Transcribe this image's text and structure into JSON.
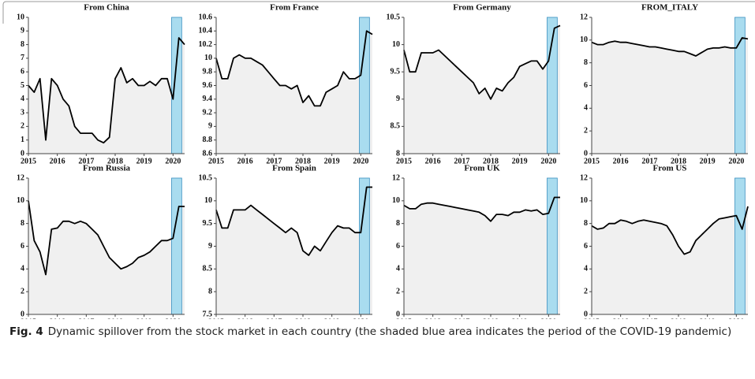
{
  "chart_data": [
    {
      "type": "line",
      "title": "From China",
      "x": [
        2015,
        2015.2,
        2015.4,
        2015.6,
        2015.8,
        2016,
        2016.2,
        2016.4,
        2016.6,
        2016.8,
        2017,
        2017.2,
        2017.4,
        2017.6,
        2017.8,
        2018,
        2018.2,
        2018.4,
        2018.6,
        2018.8,
        2019,
        2019.2,
        2019.4,
        2019.6,
        2019.8,
        2020,
        2020.2,
        2020.4
      ],
      "series": [
        {
          "color": "#000000",
          "values": [
            5,
            4.5,
            5.5,
            1,
            5.5,
            5,
            4,
            3.5,
            2,
            1.5,
            1.5,
            1.5,
            1.0,
            0.8,
            1.2,
            5.5,
            6.3,
            5.2,
            5.5,
            5,
            5,
            5.3,
            5,
            5.5,
            5.5,
            4,
            8.5,
            8
          ]
        }
      ],
      "xlim": [
        2015,
        2020.4
      ],
      "xticks": [
        2015,
        2016,
        2017,
        2018,
        2019,
        2020
      ],
      "ylim": [
        0,
        10
      ],
      "yticks": [
        0,
        1,
        2,
        3,
        4,
        5,
        6,
        7,
        8,
        9,
        10
      ],
      "fill": "#f0f0f0",
      "shade": {
        "x": [
          2019.95,
          2020.3
        ],
        "color": "#a9dcef"
      }
    },
    {
      "type": "line",
      "title": "From France",
      "x": [
        2015,
        2015.2,
        2015.4,
        2015.6,
        2015.8,
        2016,
        2016.2,
        2016.4,
        2016.6,
        2016.8,
        2017,
        2017.2,
        2017.4,
        2017.6,
        2017.8,
        2018,
        2018.2,
        2018.4,
        2018.6,
        2018.8,
        2019,
        2019.2,
        2019.4,
        2019.6,
        2019.8,
        2020,
        2020.2,
        2020.4
      ],
      "series": [
        {
          "color": "#000000",
          "values": [
            10,
            9.7,
            9.7,
            10,
            10.05,
            10,
            10,
            9.95,
            9.9,
            9.8,
            9.7,
            9.6,
            9.6,
            9.55,
            9.6,
            9.35,
            9.45,
            9.3,
            9.3,
            9.5,
            9.55,
            9.6,
            9.8,
            9.7,
            9.7,
            9.75,
            10.4,
            10.35
          ]
        }
      ],
      "xlim": [
        2015,
        2020.4
      ],
      "xticks": [
        2015,
        2016,
        2017,
        2018,
        2019,
        2020
      ],
      "ylim": [
        8.6,
        10.6
      ],
      "yticks": [
        8.6,
        8.8,
        9,
        9.2,
        9.4,
        9.6,
        9.8,
        10,
        10.2,
        10.4,
        10.6
      ],
      "fill": "#f0f0f0",
      "shade": {
        "x": [
          2019.95,
          2020.3
        ],
        "color": "#a9dcef"
      }
    },
    {
      "type": "line",
      "title": "From Germany",
      "x": [
        2015,
        2015.2,
        2015.4,
        2015.6,
        2015.8,
        2016,
        2016.2,
        2016.4,
        2016.6,
        2016.8,
        2017,
        2017.2,
        2017.4,
        2017.6,
        2017.8,
        2018,
        2018.2,
        2018.4,
        2018.6,
        2018.8,
        2019,
        2019.2,
        2019.4,
        2019.6,
        2019.8,
        2020,
        2020.2,
        2020.4
      ],
      "series": [
        {
          "color": "#000000",
          "values": [
            9.9,
            9.5,
            9.5,
            9.85,
            9.85,
            9.85,
            9.9,
            9.8,
            9.7,
            9.6,
            9.5,
            9.4,
            9.3,
            9.1,
            9.2,
            9.0,
            9.2,
            9.15,
            9.3,
            9.4,
            9.6,
            9.65,
            9.7,
            9.7,
            9.55,
            9.7,
            10.3,
            10.35
          ]
        }
      ],
      "xlim": [
        2015,
        2020.4
      ],
      "xticks": [
        2015,
        2016,
        2017,
        2018,
        2019,
        2020
      ],
      "ylim": [
        8,
        10.5
      ],
      "yticks": [
        8,
        8.5,
        9,
        9.5,
        10,
        10.5
      ],
      "fill": "#f0f0f0",
      "shade": {
        "x": [
          2019.95,
          2020.3
        ],
        "color": "#a9dcef"
      }
    },
    {
      "type": "line",
      "title": "FROM_ITALY",
      "x": [
        2015,
        2015.2,
        2015.4,
        2015.6,
        2015.8,
        2016,
        2016.2,
        2016.4,
        2016.6,
        2016.8,
        2017,
        2017.2,
        2017.4,
        2017.6,
        2017.8,
        2018,
        2018.2,
        2018.4,
        2018.6,
        2018.8,
        2019,
        2019.2,
        2019.4,
        2019.6,
        2019.8,
        2020,
        2020.2,
        2020.4
      ],
      "series": [
        {
          "color": "#000000",
          "values": [
            9.8,
            9.6,
            9.6,
            9.8,
            9.9,
            9.8,
            9.8,
            9.7,
            9.6,
            9.5,
            9.4,
            9.4,
            9.3,
            9.2,
            9.1,
            9.0,
            9.0,
            8.8,
            8.6,
            8.9,
            9.2,
            9.3,
            9.3,
            9.4,
            9.3,
            9.3,
            10.2,
            10.1
          ]
        }
      ],
      "xlim": [
        2015,
        2020.4
      ],
      "xticks": [
        2015,
        2016,
        2017,
        2018,
        2019,
        2020
      ],
      "ylim": [
        0,
        12
      ],
      "yticks": [
        0,
        2,
        4,
        6,
        8,
        10,
        12
      ],
      "fill": "#f0f0f0",
      "shade": {
        "x": [
          2019.95,
          2020.3
        ],
        "color": "#a9dcef"
      }
    },
    {
      "type": "line",
      "title": "From Russia",
      "x": [
        2015,
        2015.2,
        2015.4,
        2015.6,
        2015.8,
        2016,
        2016.2,
        2016.4,
        2016.6,
        2016.8,
        2017,
        2017.2,
        2017.4,
        2017.6,
        2017.8,
        2018,
        2018.2,
        2018.4,
        2018.6,
        2018.8,
        2019,
        2019.2,
        2019.4,
        2019.6,
        2019.8,
        2020,
        2020.2,
        2020.4
      ],
      "series": [
        {
          "color": "#000000",
          "values": [
            10,
            6.5,
            5.5,
            3.5,
            7.5,
            7.6,
            8.2,
            8.2,
            8.0,
            8.2,
            8.0,
            7.5,
            7.0,
            6.0,
            5.0,
            4.5,
            4.0,
            4.2,
            4.5,
            5.0,
            5.2,
            5.5,
            6.0,
            6.5,
            6.5,
            6.7,
            9.5,
            9.5
          ]
        }
      ],
      "xlim": [
        2015,
        2020.4
      ],
      "xticks": [
        2015,
        2016,
        2017,
        2018,
        2019,
        2020
      ],
      "ylim": [
        0,
        12
      ],
      "yticks": [
        0,
        2,
        4,
        6,
        8,
        10,
        12
      ],
      "fill": "#f0f0f0",
      "shade": {
        "x": [
          2019.95,
          2020.3
        ],
        "color": "#a9dcef"
      }
    },
    {
      "type": "line",
      "title": "From Spain",
      "x": [
        2015,
        2015.2,
        2015.4,
        2015.6,
        2015.8,
        2016,
        2016.2,
        2016.4,
        2016.6,
        2016.8,
        2017,
        2017.2,
        2017.4,
        2017.6,
        2017.8,
        2018,
        2018.2,
        2018.4,
        2018.6,
        2018.8,
        2019,
        2019.2,
        2019.4,
        2019.6,
        2019.8,
        2020,
        2020.2,
        2020.4
      ],
      "series": [
        {
          "color": "#000000",
          "values": [
            9.8,
            9.4,
            9.4,
            9.8,
            9.8,
            9.8,
            9.9,
            9.8,
            9.7,
            9.6,
            9.5,
            9.4,
            9.3,
            9.4,
            9.3,
            8.9,
            8.8,
            9.0,
            8.9,
            9.1,
            9.3,
            9.45,
            9.4,
            9.4,
            9.3,
            9.3,
            10.3,
            10.3
          ]
        }
      ],
      "xlim": [
        2015,
        2020.4
      ],
      "xticks": [
        2015,
        2016,
        2017,
        2018,
        2019,
        2020
      ],
      "ylim": [
        7.5,
        10.5
      ],
      "yticks": [
        7.5,
        8,
        8.5,
        9,
        9.5,
        10,
        10.5
      ],
      "fill": "#f0f0f0",
      "shade": {
        "x": [
          2019.95,
          2020.3
        ],
        "color": "#a9dcef"
      }
    },
    {
      "type": "line",
      "title": "From UK",
      "x": [
        2015,
        2015.2,
        2015.4,
        2015.6,
        2015.8,
        2016,
        2016.2,
        2016.4,
        2016.6,
        2016.8,
        2017,
        2017.2,
        2017.4,
        2017.6,
        2017.8,
        2018,
        2018.2,
        2018.4,
        2018.6,
        2018.8,
        2019,
        2019.2,
        2019.4,
        2019.6,
        2019.8,
        2020,
        2020.2,
        2020.4
      ],
      "series": [
        {
          "color": "#000000",
          "values": [
            9.6,
            9.3,
            9.3,
            9.7,
            9.8,
            9.8,
            9.7,
            9.6,
            9.5,
            9.4,
            9.3,
            9.2,
            9.1,
            9.0,
            8.7,
            8.2,
            8.8,
            8.8,
            8.7,
            9.0,
            9.0,
            9.2,
            9.1,
            9.2,
            8.8,
            8.9,
            10.3,
            10.3
          ]
        }
      ],
      "xlim": [
        2015,
        2020.4
      ],
      "xticks": [
        2015,
        2016,
        2017,
        2018,
        2019,
        2020
      ],
      "ylim": [
        0,
        12
      ],
      "yticks": [
        0,
        2,
        4,
        6,
        8,
        10,
        12
      ],
      "fill": "#f0f0f0",
      "shade": {
        "x": [
          2019.95,
          2020.3
        ],
        "color": "#a9dcef"
      }
    },
    {
      "type": "line",
      "title": "From US",
      "x": [
        2015,
        2015.2,
        2015.4,
        2015.6,
        2015.8,
        2016,
        2016.2,
        2016.4,
        2016.6,
        2016.8,
        2017,
        2017.2,
        2017.4,
        2017.6,
        2017.8,
        2018,
        2018.2,
        2018.4,
        2018.6,
        2018.8,
        2019,
        2019.2,
        2019.4,
        2019.6,
        2019.8,
        2020,
        2020.2,
        2020.4
      ],
      "series": [
        {
          "color": "#000000",
          "values": [
            7.8,
            7.5,
            7.6,
            8.0,
            8.0,
            8.3,
            8.2,
            8.0,
            8.2,
            8.3,
            8.2,
            8.1,
            8.0,
            7.8,
            7.0,
            6.0,
            5.3,
            5.5,
            6.5,
            7.0,
            7.5,
            8.0,
            8.4,
            8.5,
            8.6,
            8.7,
            7.5,
            9.5
          ]
        }
      ],
      "xlim": [
        2015,
        2020.4
      ],
      "xticks": [
        2015,
        2016,
        2017,
        2018,
        2019,
        2020
      ],
      "ylim": [
        0,
        12
      ],
      "yticks": [
        0,
        2,
        4,
        6,
        8,
        10,
        12
      ],
      "fill": "#f0f0f0",
      "shade": {
        "x": [
          2019.95,
          2020.3
        ],
        "color": "#a9dcef"
      }
    }
  ],
  "caption": {
    "label": "Fig. 4",
    "text": "Dynamic spillover from the stock market in each country (the shaded blue area indicates the period of the COVID-19 pandemic)"
  }
}
